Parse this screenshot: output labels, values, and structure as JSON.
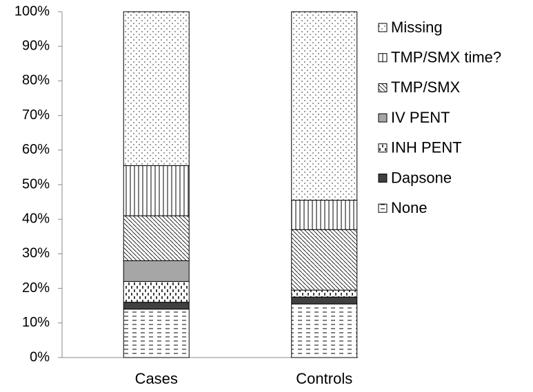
{
  "chart_data": {
    "type": "stacked_bar",
    "categories": [
      "Cases",
      "Controls"
    ],
    "series": [
      {
        "name": "None",
        "color": "#ffffff",
        "pattern": "dashes",
        "values": [
          14,
          15.5
        ]
      },
      {
        "name": "Dapsone",
        "color": "#404040",
        "pattern": "solid",
        "values": [
          2,
          2
        ]
      },
      {
        "name": "INH PENT",
        "color": "#ffffff",
        "pattern": "dashes-vertical",
        "values": [
          6,
          2
        ]
      },
      {
        "name": "IV PENT",
        "color": "#a6a6a6",
        "pattern": "solid",
        "values": [
          6,
          0
        ]
      },
      {
        "name": "TMP/SMX",
        "color": "#ffffff",
        "pattern": "diagonal",
        "values": [
          13,
          17.5
        ]
      },
      {
        "name": "TMP/SMX time?",
        "color": "#ffffff",
        "pattern": "vertical",
        "values": [
          14.5,
          8.5
        ]
      },
      {
        "name": "Missing",
        "color": "#ffffff",
        "pattern": "dots",
        "values": [
          44.5,
          54.5
        ]
      }
    ],
    "ylim": [
      0,
      100
    ],
    "yticks": [
      {
        "value": 0,
        "label": "0%"
      },
      {
        "value": 10,
        "label": "10%"
      },
      {
        "value": 20,
        "label": "20%"
      },
      {
        "value": 30,
        "label": "30%"
      },
      {
        "value": 40,
        "label": "40%"
      },
      {
        "value": 50,
        "label": "50%"
      },
      {
        "value": 60,
        "label": "60%"
      },
      {
        "value": 70,
        "label": "70%"
      },
      {
        "value": 80,
        "label": "80%"
      },
      {
        "value": 90,
        "label": "90%"
      },
      {
        "value": 100,
        "label": "100%"
      }
    ],
    "legend": "right"
  }
}
